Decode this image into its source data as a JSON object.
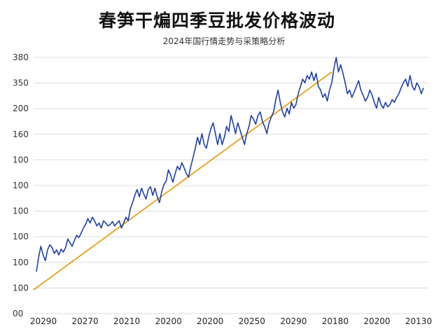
{
  "header": {
    "title": "春笋干煸四季豆批发价格波动",
    "subtitle": "2024年国行情走势与采策略分析"
  },
  "chart_data": {
    "type": "line",
    "title": "春笋干煸四季豆批发价格波动",
    "subtitle": "2024年国行情走势与采策略分析",
    "xlabel": "",
    "ylabel": "",
    "y_tick_labels": [
      "00",
      "100",
      "100",
      "100",
      "100",
      "100",
      "100",
      "160",
      "200",
      "350",
      "380"
    ],
    "x_tick_labels": [
      "20290",
      "20270",
      "20210",
      "20200",
      "20200",
      "20250",
      "20290",
      "20180",
      "20200",
      "20130"
    ],
    "grid": true,
    "legend": "none",
    "series": [
      {
        "color": "#1f3fa6",
        "values": [
          25,
          45,
          60,
          48,
          40,
          55,
          62,
          58,
          50,
          55,
          48,
          56,
          52,
          58,
          70,
          65,
          60,
          68,
          75,
          72,
          78,
          85,
          90,
          98,
          92,
          100,
          95,
          88,
          92,
          85,
          95,
          92,
          88,
          90,
          94,
          88,
          92,
          95,
          85,
          92,
          100,
          95,
          112,
          120,
          130,
          138,
          128,
          140,
          132,
          125,
          138,
          142,
          130,
          140,
          128,
          120,
          135,
          145,
          150,
          165,
          158,
          148,
          160,
          170,
          165,
          175,
          168,
          160,
          155,
          170,
          182,
          195,
          210,
          200,
          215,
          200,
          195,
          210,
          222,
          230,
          215,
          200,
          215,
          200,
          210,
          225,
          218,
          240,
          228,
          215,
          230,
          220,
          210,
          200,
          215,
          225,
          240,
          235,
          228,
          240,
          245,
          232,
          225,
          215,
          230,
          238,
          245,
          262,
          275,
          258,
          245,
          238,
          250,
          242,
          258,
          250,
          255,
          270,
          280,
          290,
          285,
          295,
          290,
          300,
          288,
          298,
          280,
          275,
          265,
          270,
          260,
          275,
          285,
          305,
          320,
          300,
          310,
          298,
          285,
          270,
          275,
          265,
          272,
          280,
          288,
          275,
          268,
          260,
          265,
          275,
          268,
          258,
          250,
          265,
          255,
          250,
          258,
          252,
          255,
          262,
          258,
          265,
          270,
          278,
          285,
          290,
          280,
          295,
          280,
          275,
          285,
          280,
          270,
          278
        ]
      },
      {
        "color": "#e6a21a",
        "values": [
          0,
          300
        ]
      }
    ]
  }
}
